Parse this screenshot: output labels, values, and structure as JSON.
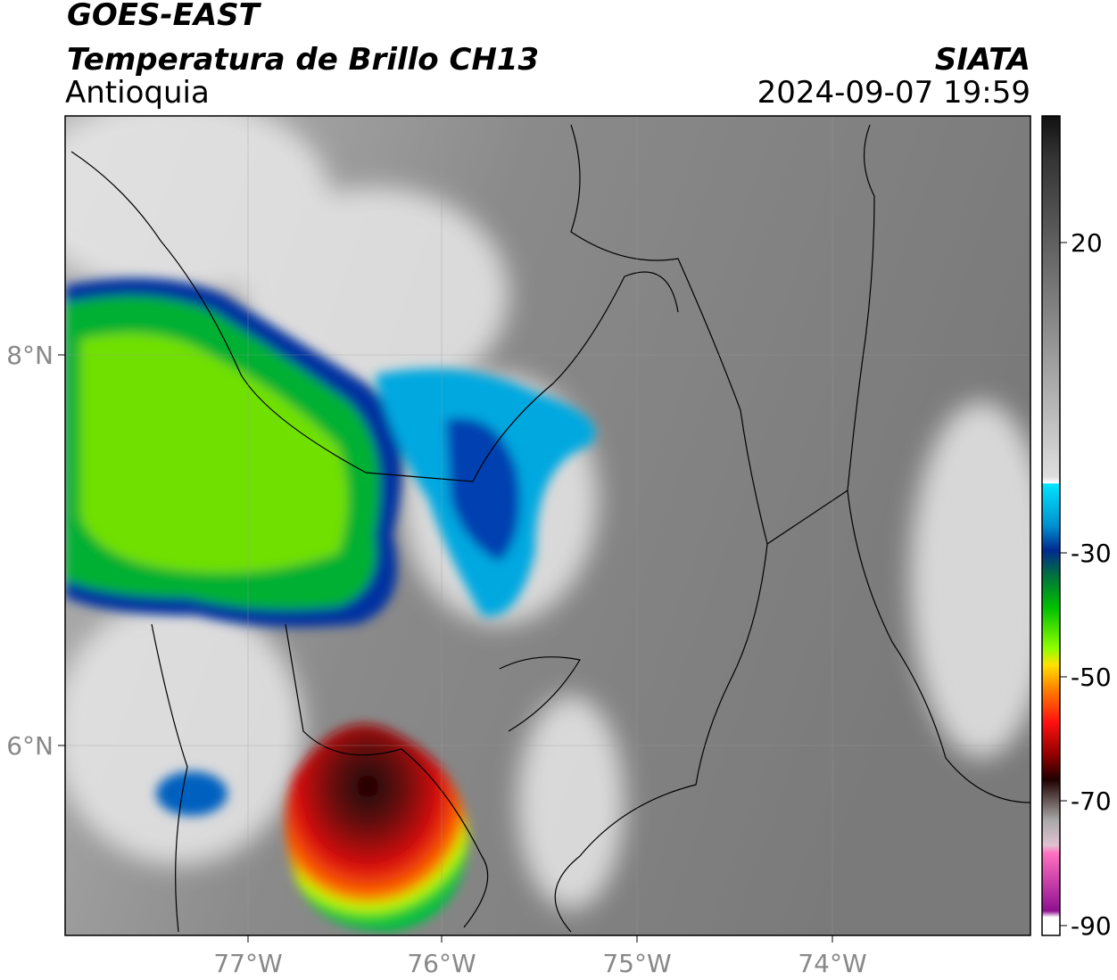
{
  "header": {
    "title": "GOES-EAST",
    "subtitle": "Temperatura de Brillo CH13",
    "region": "Antioquia",
    "source": "SIATA",
    "datetime": "2024-09-07 19:59"
  },
  "map": {
    "longitude_labels": [
      "77°W",
      "76°W",
      "75°W",
      "74°W"
    ],
    "latitude_labels": [
      "8°N",
      "6°N"
    ]
  },
  "colorbar": {
    "labels": [
      "20",
      "-30",
      "-50",
      "-70",
      "-90"
    ]
  }
}
